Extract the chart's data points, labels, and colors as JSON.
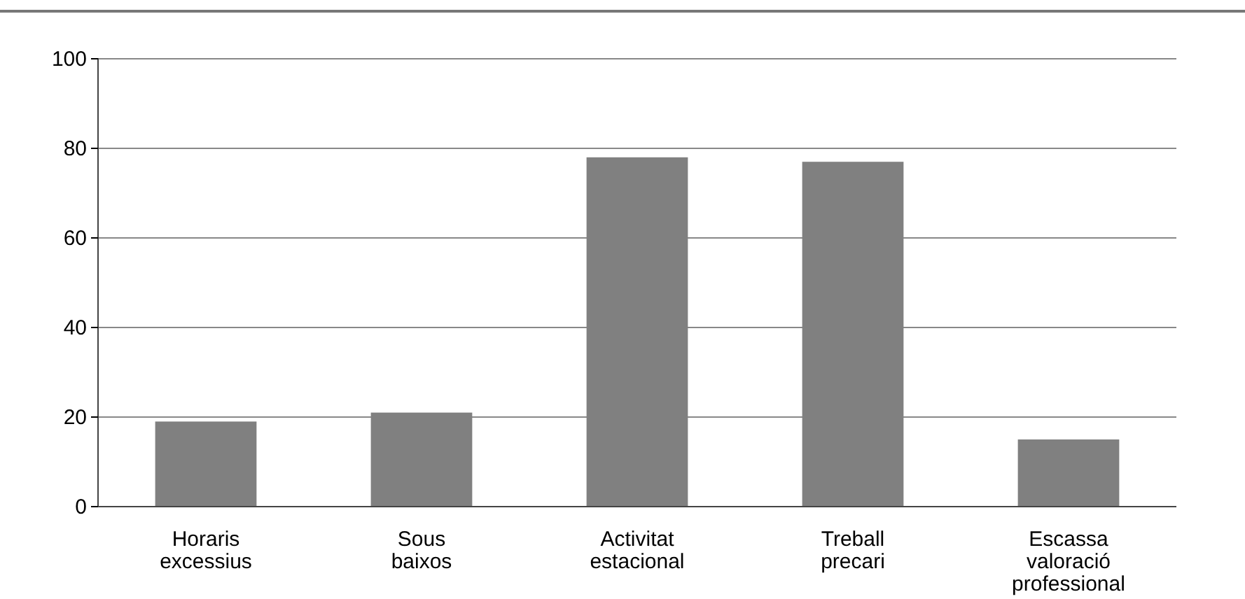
{
  "chart_data": {
    "type": "bar",
    "categories": [
      "Horaris excessius",
      "Sous baixos",
      "Activitat estacional",
      "Treball precari",
      "Escassa valoració professional"
    ],
    "values": [
      19,
      21,
      78,
      77,
      15
    ],
    "color": "#808080",
    "ylim": [
      0,
      100
    ],
    "yticks": [
      0,
      20,
      40,
      60,
      80,
      100
    ],
    "grid": "y"
  }
}
